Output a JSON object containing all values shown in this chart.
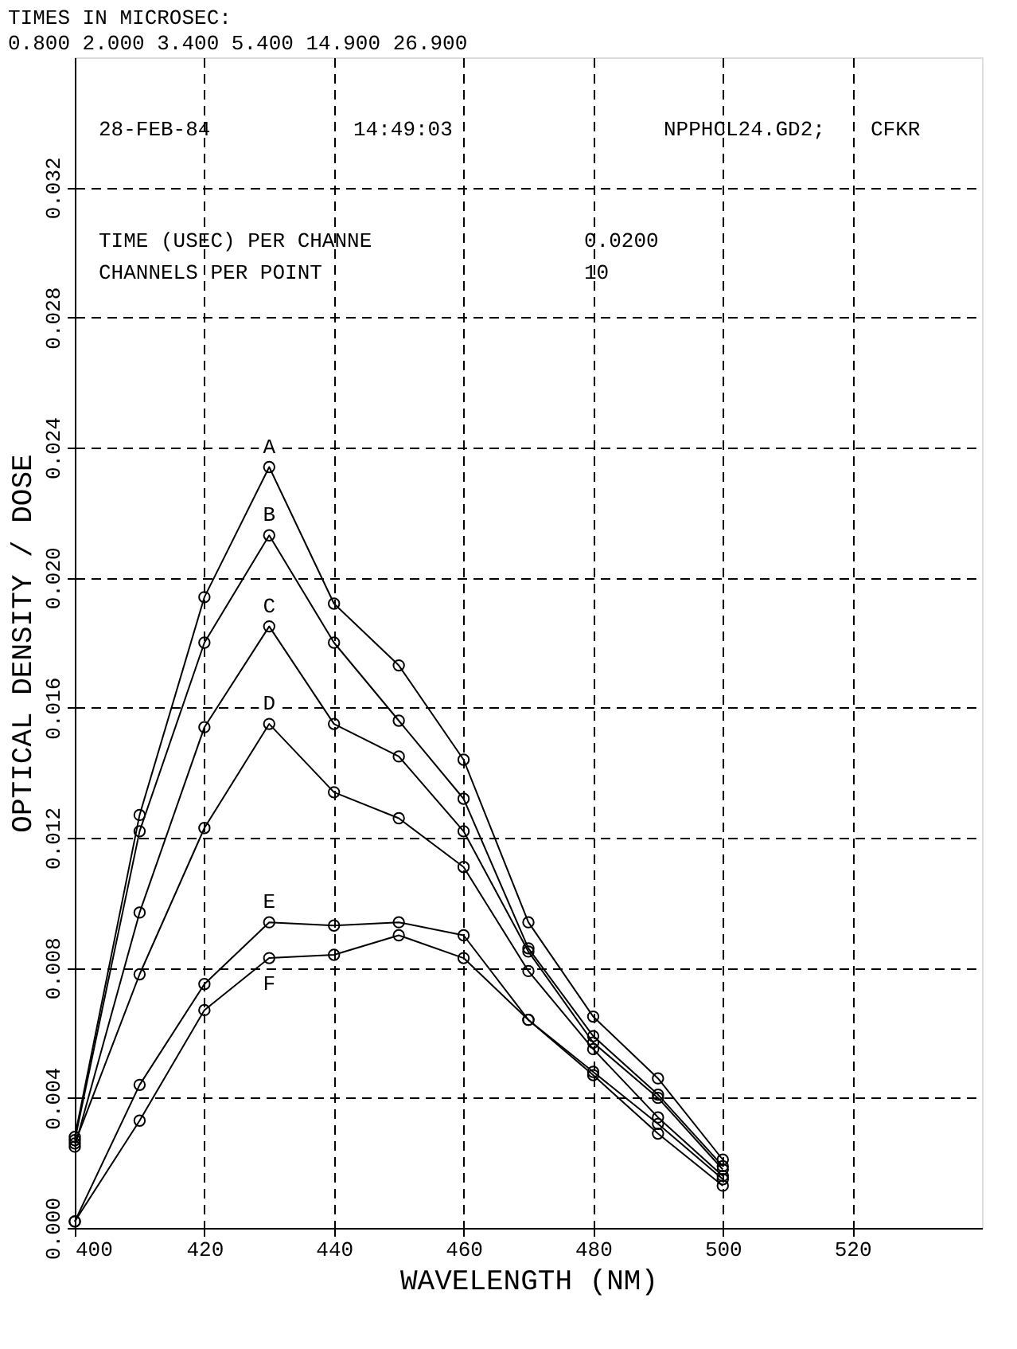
{
  "chart_data": {
    "type": "line",
    "title": "TIMES IN MICROSEC:",
    "subtitle": "0.800  2.000  3.400  5.400  14.900 26.900",
    "xlabel": "WAVELENGTH (NM)",
    "ylabel": "OPTICAL DENSITY / DOSE",
    "x": [
      400,
      410,
      420,
      430,
      440,
      450,
      460,
      470,
      480,
      490,
      500
    ],
    "series": [
      {
        "name": "A",
        "color": "#000000",
        "values": [
          0.0028,
          0.0127,
          0.0194,
          0.0234,
          0.0192,
          0.0173,
          0.0144,
          0.0094,
          0.0065,
          0.0046,
          0.0021
        ]
      },
      {
        "name": "B",
        "color": "#000000",
        "values": [
          0.0027,
          0.0122,
          0.018,
          0.0213,
          0.018,
          0.0156,
          0.0132,
          0.0086,
          0.0059,
          0.0041,
          0.0019
        ]
      },
      {
        "name": "C",
        "color": "#000000",
        "values": [
          0.0025,
          0.0097,
          0.0154,
          0.0185,
          0.0155,
          0.0145,
          0.0122,
          0.0085,
          0.0057,
          0.004,
          0.0018
        ]
      },
      {
        "name": "D",
        "color": "#000000",
        "values": [
          0.0026,
          0.0078,
          0.0123,
          0.0155,
          0.0134,
          0.0126,
          0.0111,
          0.0079,
          0.0055,
          0.0034,
          0.0016
        ]
      },
      {
        "name": "E",
        "color": "#000000",
        "values": [
          0.0002,
          0.0044,
          0.0075,
          0.0094,
          0.0093,
          0.0094,
          0.009,
          0.0064,
          0.0048,
          0.0032,
          0.0015
        ]
      },
      {
        "name": "F",
        "color": "#000000",
        "values": [
          0.0002,
          0.0033,
          0.0067,
          0.0083,
          0.0084,
          0.009,
          0.0083,
          0.0064,
          0.0047,
          0.0029,
          0.0013
        ]
      }
    ],
    "annotations": [
      "28-FEB-84",
      "14:49:03",
      "NPPHCL24.GD2;",
      "CFKR",
      "TIME (USEC) PER CHANNE",
      "0.0200",
      "CHANNELS PER POINT",
      "10"
    ],
    "xlim": [
      400,
      540
    ],
    "xticks": [
      400,
      420,
      440,
      460,
      480,
      500,
      520
    ],
    "ylim": [
      0,
      0.036
    ],
    "yticks": [
      {
        "value": 0,
        "label": "0.000"
      },
      {
        "value": 0.004,
        "label": "0.004"
      },
      {
        "value": 0.008,
        "label": "0.008"
      },
      {
        "value": 0.012,
        "label": "0.012"
      },
      {
        "value": 0.016,
        "label": "0.016"
      },
      {
        "value": 0.02,
        "label": "0.020"
      },
      {
        "value": 0.024,
        "label": "0.024"
      },
      {
        "value": 0.028,
        "label": "0.028"
      },
      {
        "value": 0.032,
        "label": "0.032"
      }
    ],
    "grid": true,
    "legend": false,
    "line_style": "solid",
    "marker": "circle"
  }
}
